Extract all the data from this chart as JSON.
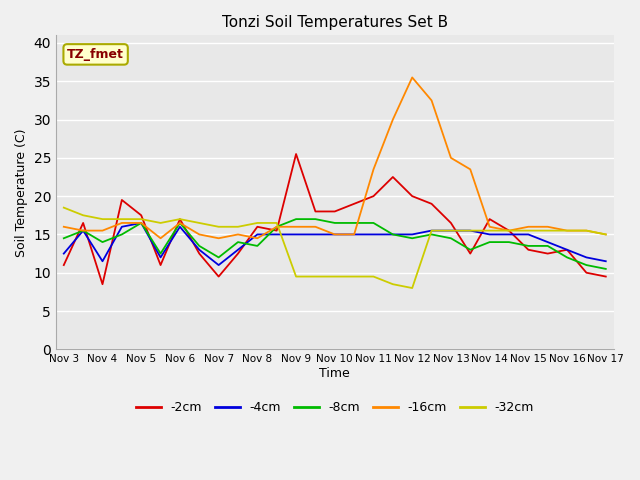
{
  "title": "Tonzi Soil Temperatures Set B",
  "xlabel": "Time",
  "ylabel": "Soil Temperature (C)",
  "annotation_text": "TZ_fmet",
  "annotation_box_color": "#ffffcc",
  "annotation_text_color": "#880000",
  "annotation_border_color": "#aaaa00",
  "ylim": [
    0,
    41
  ],
  "yticks": [
    0,
    5,
    10,
    15,
    20,
    25,
    30,
    35,
    40
  ],
  "background_color": "#e8e8e8",
  "grid_color": "#ffffff",
  "series_colors": {
    "-2cm": "#dd0000",
    "-4cm": "#0000dd",
    "-8cm": "#00bb00",
    "-16cm": "#ff8800",
    "-32cm": "#cccc00"
  },
  "xtick_labels": [
    "Nov 3",
    "Nov 4",
    "Nov 5",
    "Nov 6",
    "Nov 7",
    "Nov 8",
    "Nov 9",
    "Nov 10",
    "Nov 11",
    "Nov 12",
    "Nov 13",
    "Nov 14",
    "Nov 15",
    "Nov 16",
    "Nov 17"
  ],
  "series": {
    "-2cm": [
      11.0,
      16.5,
      8.5,
      19.5,
      17.5,
      11.0,
      17.0,
      12.5,
      9.5,
      12.5,
      16.0,
      15.5,
      25.5,
      18.0,
      18.0,
      19.0,
      20.0,
      22.5,
      20.0,
      19.0,
      16.5,
      12.5,
      17.0,
      15.5,
      13.0,
      12.5,
      13.0,
      10.0,
      9.5
    ],
    "-4cm": [
      12.5,
      15.5,
      11.5,
      16.0,
      16.5,
      12.0,
      16.0,
      13.0,
      11.0,
      13.0,
      15.0,
      15.0,
      15.0,
      15.0,
      15.0,
      15.0,
      15.0,
      15.0,
      15.0,
      15.5,
      15.5,
      15.5,
      15.0,
      15.0,
      15.0,
      14.0,
      13.0,
      12.0,
      11.5
    ],
    "-8cm": [
      14.5,
      15.5,
      14.0,
      15.0,
      16.5,
      12.5,
      16.5,
      13.5,
      12.0,
      14.0,
      13.5,
      16.0,
      17.0,
      17.0,
      16.5,
      16.5,
      16.5,
      15.0,
      14.5,
      15.0,
      14.5,
      13.0,
      14.0,
      14.0,
      13.5,
      13.5,
      12.0,
      11.0,
      10.5
    ],
    "-16cm": [
      16.0,
      15.5,
      15.5,
      16.5,
      16.5,
      14.5,
      16.5,
      15.0,
      14.5,
      15.0,
      14.5,
      16.0,
      16.0,
      16.0,
      15.0,
      15.0,
      23.5,
      30.0,
      35.5,
      32.5,
      25.0,
      23.5,
      16.0,
      15.5,
      16.0,
      16.0,
      15.5,
      15.5,
      15.0
    ],
    "-32cm": [
      18.5,
      17.5,
      17.0,
      17.0,
      17.0,
      16.5,
      17.0,
      16.5,
      16.0,
      16.0,
      16.5,
      16.5,
      9.5,
      9.5,
      9.5,
      9.5,
      9.5,
      8.5,
      8.0,
      15.5,
      15.5,
      15.5,
      15.5,
      15.5,
      15.5,
      15.5,
      15.5,
      15.5,
      15.0
    ]
  },
  "legend_entries": [
    "-2cm",
    "-4cm",
    "-8cm",
    "-16cm",
    "-32cm"
  ]
}
